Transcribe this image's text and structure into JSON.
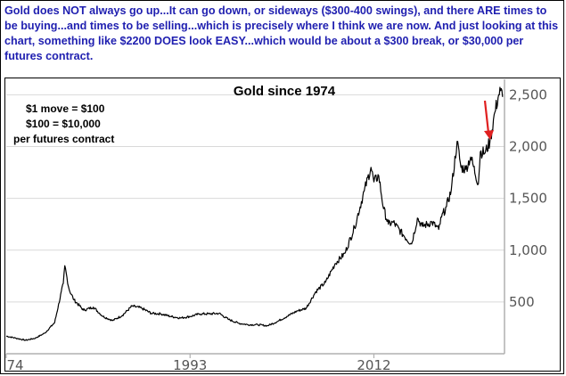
{
  "headline": "Gold does NOT always go up...It can go down, or sideways ($300-400 swings), and there ARE times to be buying...and times to be selling...which is precisely where I think we are now. And just looking at this chart, something like $2200 DOES look EASY...which would be about a $300 break, or $30,000 per futures contract.",
  "notes": [
    "$1 move = $100",
    "$100 = $10,000",
    "per futures contract"
  ],
  "colors": {
    "headline": "#1f1fb0",
    "line": "#000000",
    "arrow": "#e02020",
    "grid": "#d9d9d9",
    "axis": "#b0b0b0"
  },
  "chart_data": {
    "type": "line",
    "title": "Gold since 1974",
    "xlabel": "",
    "ylabel": "",
    "x_tick_labels": [
      "74",
      "1993",
      "2012"
    ],
    "x_tick_years": [
      1974,
      1993,
      2012
    ],
    "y_ticks": [
      500,
      1000,
      1500,
      2000,
      2500
    ],
    "y_tick_labels": [
      "500",
      "1,000",
      "1,500",
      "2,000",
      "2,500"
    ],
    "xlim": [
      1974,
      2025.5
    ],
    "ylim": [
      0,
      2650
    ],
    "grid": "horizontal",
    "annotation": "downward-arrow-near-peak",
    "series": [
      {
        "x": [
          1974,
          1975,
          1976,
          1977,
          1978,
          1979,
          1979.9,
          1980.05,
          1980.5,
          1981,
          1982,
          1983,
          1984,
          1985,
          1986,
          1987,
          1988,
          1989,
          1990,
          1991,
          1992,
          1993,
          1994,
          1995,
          1996,
          1997,
          1998,
          1999,
          2000,
          2001,
          2002,
          2003,
          2004,
          2005,
          2006,
          2007,
          2008,
          2009,
          2010,
          2011,
          2011.7,
          2012,
          2012.5,
          2013,
          2013.5,
          2014,
          2015,
          2015.9,
          2016.5,
          2017,
          2018,
          2018.7,
          2019,
          2019.5,
          2020,
          2020.6,
          2021,
          2021.5,
          2022,
          2022.8,
          2023,
          2023.5,
          2024,
          2024.5,
          2024.9,
          2025.1,
          2025.3
        ],
        "y": [
          170,
          150,
          130,
          150,
          200,
          300,
          680,
          850,
          620,
          520,
          420,
          450,
          360,
          320,
          370,
          460,
          440,
          390,
          385,
          360,
          345,
          360,
          385,
          385,
          390,
          330,
          295,
          280,
          280,
          270,
          310,
          360,
          410,
          440,
          600,
          690,
          870,
          970,
          1220,
          1570,
          1800,
          1660,
          1720,
          1400,
          1250,
          1270,
          1150,
          1060,
          1310,
          1230,
          1270,
          1200,
          1320,
          1420,
          1580,
          2050,
          1800,
          1780,
          1900,
          1640,
          1950,
          1940,
          2050,
          2330,
          2500,
          2540,
          2480
        ]
      }
    ]
  }
}
